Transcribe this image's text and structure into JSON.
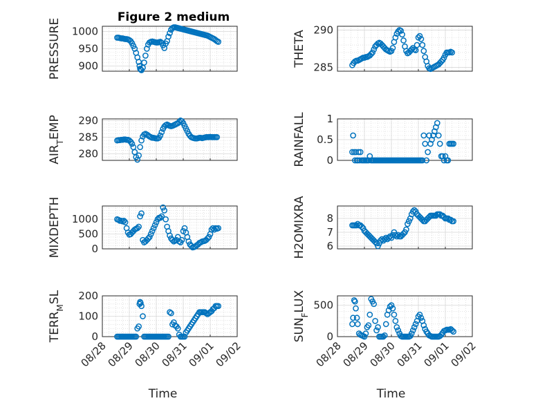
{
  "figure": {
    "title": "Figure 2 medium",
    "colors": {
      "marker": "#0072BD",
      "axis": "#262626",
      "grid": "#d9d9d9"
    }
  },
  "chart_data": [
    {
      "type": "scatter",
      "title": "Figure 2 medium",
      "ylabel": "PRESSURE",
      "xlabel": "",
      "ylim": [
        885,
        1015
      ],
      "yticks": [
        900,
        950,
        1000
      ],
      "xlim": [
        0,
        5
      ],
      "xticks": [],
      "grid": true,
      "x": [
        0.55,
        0.6,
        0.65,
        0.7,
        0.75,
        0.8,
        0.85,
        0.9,
        0.95,
        1.0,
        1.05,
        1.1,
        1.15,
        1.2,
        1.25,
        1.3,
        1.35,
        1.38,
        1.4,
        1.42,
        1.45,
        1.5,
        1.55,
        1.6,
        1.65,
        1.7,
        1.75,
        1.8,
        1.85,
        1.9,
        1.95,
        2.0,
        2.05,
        2.1,
        2.15,
        2.2,
        2.25,
        2.3,
        2.35,
        2.4,
        2.45,
        2.5,
        2.55,
        2.6,
        2.65,
        2.7,
        2.75,
        2.8,
        2.85,
        2.9,
        2.95,
        3.0,
        3.05,
        3.1,
        3.15,
        3.2,
        3.25,
        3.3,
        3.35,
        3.4,
        3.45,
        3.5,
        3.55,
        3.6,
        3.65,
        3.7,
        3.75,
        3.8,
        3.85,
        3.9,
        3.95,
        4.0,
        4.05,
        4.1,
        4.15,
        4.2,
        4.25,
        4.3
      ],
      "values": [
        982,
        982,
        981,
        980,
        980,
        979,
        978,
        978,
        977,
        975,
        972,
        966,
        958,
        950,
        938,
        925,
        912,
        900,
        892,
        890,
        888,
        895,
        910,
        930,
        950,
        962,
        968,
        970,
        971,
        970,
        969,
        968,
        968,
        969,
        970,
        967,
        960,
        952,
        965,
        972,
        985,
        995,
        1005,
        1010,
        1012,
        1012,
        1011,
        1010,
        1009,
        1008,
        1007,
        1006,
        1005,
        1004,
        1003,
        1002,
        1001,
        1000,
        999,
        998,
        997,
        996,
        995,
        994,
        993,
        992,
        991,
        990,
        989,
        988,
        986,
        984,
        982,
        980,
        978,
        975,
        972,
        970
      ]
    },
    {
      "type": "scatter",
      "ylabel": "THETA",
      "ylim": [
        284.5,
        290.5
      ],
      "yticks": [
        285,
        290
      ],
      "xlim": [
        0,
        5
      ],
      "xticks": [],
      "grid": true,
      "x": [
        0.55,
        0.6,
        0.65,
        0.7,
        0.75,
        0.8,
        0.85,
        0.9,
        0.95,
        1.0,
        1.05,
        1.1,
        1.15,
        1.2,
        1.25,
        1.3,
        1.35,
        1.4,
        1.45,
        1.5,
        1.55,
        1.6,
        1.65,
        1.7,
        1.75,
        1.8,
        1.85,
        1.9,
        1.95,
        2.0,
        2.05,
        2.1,
        2.15,
        2.2,
        2.25,
        2.3,
        2.35,
        2.4,
        2.45,
        2.5,
        2.55,
        2.6,
        2.65,
        2.7,
        2.75,
        2.8,
        2.85,
        2.9,
        2.95,
        3.0,
        3.05,
        3.1,
        3.15,
        3.2,
        3.25,
        3.3,
        3.35,
        3.4,
        3.45,
        3.5,
        3.55,
        3.6,
        3.65,
        3.7,
        3.75,
        3.8,
        3.85,
        3.9,
        3.95,
        4.0,
        4.05,
        4.1,
        4.15,
        4.2,
        4.25
      ],
      "values": [
        285.3,
        285.6,
        285.8,
        285.9,
        285.9,
        286.0,
        286.1,
        286.2,
        286.3,
        286.3,
        286.4,
        286.4,
        286.5,
        286.6,
        286.8,
        287.0,
        287.4,
        287.8,
        288.0,
        288.2,
        288.3,
        288.2,
        288.0,
        287.8,
        287.6,
        287.4,
        287.3,
        287.2,
        287.1,
        287.2,
        287.6,
        288.4,
        289.0,
        289.5,
        289.8,
        290.0,
        289.9,
        289.4,
        288.6,
        287.8,
        287.2,
        286.9,
        287.0,
        287.2,
        287.4,
        287.6,
        287.4,
        287.3,
        288.0,
        289.0,
        289.2,
        288.8,
        288.0,
        287.2,
        286.4,
        285.8,
        285.2,
        284.9,
        284.8,
        284.9,
        285.0,
        285.1,
        285.2,
        285.3,
        285.4,
        285.6,
        285.8,
        286.0,
        286.3,
        286.7,
        287.0,
        287.0,
        287.0,
        287.1,
        287.0
      ]
    },
    {
      "type": "scatter",
      "ylabel": "AIR_TEMP",
      "ylim": [
        278,
        290.5
      ],
      "yticks": [
        280,
        285,
        290
      ],
      "xlim": [
        0,
        5
      ],
      "xticks": [],
      "grid": true,
      "x": [
        0.55,
        0.6,
        0.65,
        0.7,
        0.75,
        0.8,
        0.85,
        0.9,
        0.95,
        1.0,
        1.05,
        1.1,
        1.15,
        1.2,
        1.25,
        1.3,
        1.35,
        1.4,
        1.45,
        1.5,
        1.55,
        1.6,
        1.65,
        1.7,
        1.75,
        1.8,
        1.85,
        1.9,
        1.95,
        2.0,
        2.05,
        2.1,
        2.15,
        2.2,
        2.25,
        2.3,
        2.35,
        2.4,
        2.45,
        2.5,
        2.55,
        2.6,
        2.65,
        2.7,
        2.75,
        2.8,
        2.85,
        2.9,
        2.95,
        3.0,
        3.05,
        3.1,
        3.15,
        3.2,
        3.25,
        3.3,
        3.35,
        3.4,
        3.45,
        3.5,
        3.55,
        3.6,
        3.65,
        3.7,
        3.75,
        3.8,
        3.85,
        3.9,
        3.95,
        4.0,
        4.05,
        4.1,
        4.15,
        4.2,
        4.25
      ],
      "values": [
        284.0,
        284.1,
        284.1,
        284.2,
        284.2,
        284.3,
        284.3,
        284.2,
        284.2,
        284.0,
        283.6,
        283.0,
        282.0,
        280.5,
        279.0,
        278.2,
        279.5,
        282.0,
        284.0,
        285.2,
        285.8,
        286.0,
        285.8,
        285.5,
        285.2,
        285.0,
        284.8,
        284.8,
        284.7,
        284.6,
        284.6,
        284.8,
        285.5,
        286.5,
        287.5,
        288.2,
        288.6,
        288.8,
        288.6,
        288.4,
        288.3,
        288.4,
        288.6,
        288.8,
        289.0,
        289.2,
        289.6,
        290.0,
        289.8,
        289.2,
        288.4,
        287.6,
        286.8,
        286.0,
        285.4,
        285.0,
        284.8,
        284.7,
        284.6,
        284.6,
        284.7,
        284.8,
        284.8,
        284.7,
        284.8,
        284.9,
        285.0,
        285.0,
        285.0,
        285.1,
        285.0,
        285.0,
        285.0,
        285.0,
        285.0
      ]
    },
    {
      "type": "scatter",
      "ylabel": "RAINFALL",
      "ylim": [
        0,
        1
      ],
      "yticks": [
        0,
        0.5,
        1
      ],
      "xlim": [
        0,
        5
      ],
      "xticks": [],
      "grid": true,
      "x": [
        0.55,
        0.58,
        0.62,
        0.65,
        0.68,
        0.72,
        0.75,
        0.78,
        0.82,
        0.85,
        0.9,
        0.95,
        1.0,
        1.05,
        1.1,
        1.15,
        1.2,
        1.25,
        1.3,
        1.35,
        1.4,
        1.45,
        1.5,
        1.55,
        1.6,
        1.65,
        1.7,
        1.75,
        1.8,
        1.85,
        1.9,
        1.95,
        2.0,
        2.05,
        2.1,
        2.15,
        2.2,
        2.25,
        2.3,
        2.35,
        2.4,
        2.45,
        2.5,
        2.55,
        2.6,
        2.65,
        2.7,
        2.75,
        2.8,
        2.85,
        2.9,
        2.95,
        3.0,
        3.05,
        3.1,
        3.15,
        3.2,
        3.25,
        3.3,
        3.35,
        3.4,
        3.45,
        3.5,
        3.55,
        3.6,
        3.65,
        3.7,
        3.75,
        3.8,
        3.85,
        3.9,
        3.95,
        4.0,
        4.05,
        4.1,
        4.15,
        4.2,
        4.25,
        4.3
      ],
      "values": [
        0.2,
        0.6,
        0.2,
        0.0,
        0.2,
        0.0,
        0.0,
        0.2,
        0.0,
        0.2,
        0.0,
        0.0,
        0.0,
        0.0,
        0.0,
        0.0,
        0.1,
        0.0,
        0.0,
        0.0,
        0.0,
        0.0,
        0.0,
        0.0,
        0.0,
        0.0,
        0.0,
        0.0,
        0.0,
        0.0,
        0.0,
        0.0,
        0.0,
        0.0,
        0.0,
        0.0,
        0.0,
        0.0,
        0.0,
        0.0,
        0.0,
        0.0,
        0.0,
        0.0,
        0.0,
        0.0,
        0.0,
        0.0,
        0.0,
        0.0,
        0.0,
        0.0,
        0.0,
        0.0,
        0.0,
        0.0,
        0.6,
        0.4,
        0.0,
        0.2,
        0.6,
        0.4,
        0.5,
        0.6,
        0.7,
        0.8,
        0.9,
        0.6,
        0.4,
        0.1,
        0.1,
        0.0,
        0.1,
        0.0,
        0.0,
        0.4,
        0.4,
        0.4,
        0.4
      ]
    },
    {
      "type": "scatter",
      "ylabel": "MIXDEPTH",
      "ylim": [
        0,
        1450
      ],
      "yticks": [
        0,
        500,
        1000
      ],
      "xlim": [
        0,
        5
      ],
      "xticks": [],
      "grid": true,
      "x": [
        0.55,
        0.6,
        0.65,
        0.7,
        0.75,
        0.8,
        0.85,
        0.9,
        0.95,
        1.0,
        1.05,
        1.1,
        1.15,
        1.2,
        1.25,
        1.3,
        1.35,
        1.4,
        1.45,
        1.5,
        1.55,
        1.6,
        1.65,
        1.7,
        1.75,
        1.8,
        1.85,
        1.9,
        1.95,
        2.0,
        2.05,
        2.1,
        2.15,
        2.2,
        2.25,
        2.3,
        2.35,
        2.4,
        2.45,
        2.5,
        2.55,
        2.6,
        2.65,
        2.7,
        2.75,
        2.8,
        2.85,
        2.9,
        2.95,
        3.0,
        3.05,
        3.1,
        3.15,
        3.2,
        3.25,
        3.3,
        3.35,
        3.4,
        3.45,
        3.5,
        3.55,
        3.6,
        3.65,
        3.7,
        3.75,
        3.8,
        3.85,
        3.9,
        3.95,
        4.0,
        4.05,
        4.1,
        4.15,
        4.2,
        4.25,
        4.3
      ],
      "values": [
        1000,
        980,
        950,
        950,
        930,
        950,
        900,
        700,
        550,
        480,
        500,
        550,
        600,
        650,
        680,
        700,
        750,
        1100,
        1200,
        300,
        220,
        250,
        300,
        350,
        400,
        500,
        600,
        700,
        800,
        900,
        1000,
        1050,
        1050,
        1100,
        1400,
        1300,
        1000,
        750,
        600,
        450,
        350,
        300,
        250,
        280,
        300,
        400,
        250,
        220,
        300,
        600,
        700,
        550,
        400,
        250,
        150,
        100,
        50,
        60,
        80,
        120,
        150,
        200,
        220,
        250,
        260,
        270,
        300,
        350,
        400,
        500,
        650,
        700,
        650,
        700,
        680,
        700
      ]
    },
    {
      "type": "scatter",
      "ylabel": "H2OMIXRA",
      "ylim": [
        5.8,
        8.9
      ],
      "yticks": [
        6,
        7,
        8
      ],
      "xlim": [
        0,
        5
      ],
      "xticks": [],
      "grid": true,
      "x": [
        0.55,
        0.6,
        0.65,
        0.7,
        0.75,
        0.8,
        0.85,
        0.9,
        0.95,
        1.0,
        1.05,
        1.1,
        1.15,
        1.2,
        1.25,
        1.3,
        1.35,
        1.4,
        1.45,
        1.5,
        1.55,
        1.6,
        1.65,
        1.7,
        1.75,
        1.8,
        1.85,
        1.9,
        1.95,
        2.0,
        2.05,
        2.1,
        2.15,
        2.2,
        2.25,
        2.3,
        2.35,
        2.4,
        2.45,
        2.5,
        2.55,
        2.6,
        2.65,
        2.7,
        2.75,
        2.8,
        2.85,
        2.9,
        2.95,
        3.0,
        3.05,
        3.1,
        3.15,
        3.2,
        3.25,
        3.3,
        3.35,
        3.4,
        3.45,
        3.5,
        3.55,
        3.6,
        3.65,
        3.7,
        3.75,
        3.8,
        3.85,
        3.9,
        3.95,
        4.0,
        4.05,
        4.1,
        4.15,
        4.2,
        4.25,
        4.3
      ],
      "values": [
        7.5,
        7.5,
        7.5,
        7.5,
        7.6,
        7.5,
        7.5,
        7.4,
        7.3,
        7.1,
        7.0,
        6.9,
        6.8,
        6.7,
        6.6,
        6.5,
        6.4,
        6.3,
        6.2,
        6.0,
        6.2,
        6.4,
        6.5,
        6.4,
        6.5,
        6.6,
        6.5,
        6.6,
        6.7,
        6.6,
        6.8,
        7.0,
        6.8,
        6.7,
        6.8,
        6.7,
        6.7,
        6.8,
        6.9,
        7.0,
        7.2,
        7.6,
        7.8,
        8.0,
        8.3,
        8.5,
        8.6,
        8.5,
        8.3,
        8.2,
        8.1,
        8.0,
        7.9,
        7.8,
        7.8,
        7.9,
        8.0,
        8.1,
        8.2,
        8.2,
        8.2,
        8.2,
        8.2,
        8.3,
        8.3,
        8.3,
        8.2,
        8.2,
        8.1,
        8.0,
        8.0,
        8.0,
        7.9,
        7.9,
        7.8,
        7.8
      ]
    },
    {
      "type": "scatter",
      "ylabel": "TERR_MSL",
      "xlabel": "Time",
      "ylim": [
        0,
        200
      ],
      "yticks": [
        0,
        100,
        200
      ],
      "xlim": [
        0,
        5
      ],
      "xticks": [
        "08/28",
        "08/29",
        "08/30",
        "08/31",
        "09/01",
        "09/02"
      ],
      "grid": true,
      "x": [
        0.55,
        0.6,
        0.65,
        0.7,
        0.75,
        0.8,
        0.85,
        0.9,
        0.95,
        1.0,
        1.05,
        1.1,
        1.15,
        1.2,
        1.25,
        1.3,
        1.35,
        1.38,
        1.4,
        1.42,
        1.45,
        1.5,
        1.55,
        1.6,
        1.65,
        1.7,
        1.75,
        1.8,
        1.85,
        1.9,
        1.95,
        2.0,
        2.05,
        2.1,
        2.15,
        2.2,
        2.25,
        2.3,
        2.35,
        2.4,
        2.45,
        2.5,
        2.55,
        2.6,
        2.65,
        2.7,
        2.75,
        2.8,
        2.85,
        2.9,
        2.95,
        3.0,
        3.05,
        3.1,
        3.15,
        3.2,
        3.25,
        3.3,
        3.35,
        3.4,
        3.45,
        3.5,
        3.55,
        3.6,
        3.65,
        3.7,
        3.75,
        3.8,
        3.85,
        3.9,
        3.95,
        4.0,
        4.05,
        4.1,
        4.15,
        4.2,
        4.25,
        4.3
      ],
      "values": [
        0,
        0,
        0,
        0,
        0,
        0,
        0,
        0,
        0,
        0,
        0,
        0,
        0,
        0,
        0,
        40,
        50,
        160,
        170,
        165,
        150,
        100,
        0,
        0,
        0,
        0,
        0,
        0,
        0,
        0,
        0,
        0,
        0,
        0,
        0,
        0,
        0,
        0,
        0,
        0,
        0,
        120,
        115,
        60,
        70,
        55,
        50,
        40,
        10,
        0,
        0,
        0,
        0,
        20,
        30,
        40,
        50,
        60,
        70,
        80,
        90,
        100,
        110,
        120,
        120,
        120,
        120,
        120,
        115,
        110,
        115,
        120,
        125,
        135,
        140,
        150,
        150,
        150
      ]
    },
    {
      "type": "scatter",
      "ylabel": "SUN_FLUX",
      "xlabel": "Time",
      "ylim": [
        0,
        650
      ],
      "yticks": [
        0,
        500
      ],
      "xlim": [
        0,
        5
      ],
      "xticks": [
        "08/28",
        "08/29",
        "08/30",
        "08/31",
        "09/01",
        "09/02"
      ],
      "grid": true,
      "x": [
        0.55,
        0.58,
        0.62,
        0.65,
        0.68,
        0.72,
        0.75,
        0.8,
        0.85,
        0.9,
        0.95,
        1.0,
        1.05,
        1.1,
        1.15,
        1.2,
        1.25,
        1.3,
        1.35,
        1.4,
        1.45,
        1.5,
        1.55,
        1.6,
        1.65,
        1.7,
        1.75,
        1.8,
        1.85,
        1.9,
        1.95,
        2.0,
        2.05,
        2.1,
        2.15,
        2.2,
        2.25,
        2.3,
        2.35,
        2.4,
        2.45,
        2.5,
        2.55,
        2.6,
        2.65,
        2.7,
        2.75,
        2.8,
        2.85,
        2.9,
        2.95,
        3.0,
        3.05,
        3.1,
        3.15,
        3.2,
        3.25,
        3.3,
        3.35,
        3.4,
        3.45,
        3.5,
        3.55,
        3.6,
        3.65,
        3.7,
        3.75,
        3.8,
        3.85,
        3.9,
        3.95,
        4.0,
        4.05,
        4.1,
        4.15,
        4.2,
        4.25,
        4.3
      ],
      "values": [
        200,
        300,
        580,
        560,
        450,
        300,
        200,
        50,
        30,
        20,
        10,
        0,
        50,
        150,
        180,
        350,
        600,
        560,
        520,
        250,
        100,
        150,
        0,
        0,
        0,
        0,
        20,
        200,
        350,
        420,
        480,
        500,
        450,
        350,
        250,
        150,
        100,
        50,
        10,
        0,
        0,
        0,
        0,
        0,
        0,
        10,
        50,
        100,
        150,
        200,
        250,
        320,
        350,
        300,
        250,
        180,
        120,
        80,
        50,
        20,
        10,
        0,
        0,
        0,
        0,
        0,
        0,
        10,
        30,
        60,
        90,
        100,
        110,
        110,
        110,
        120,
        100,
        80
      ]
    }
  ]
}
